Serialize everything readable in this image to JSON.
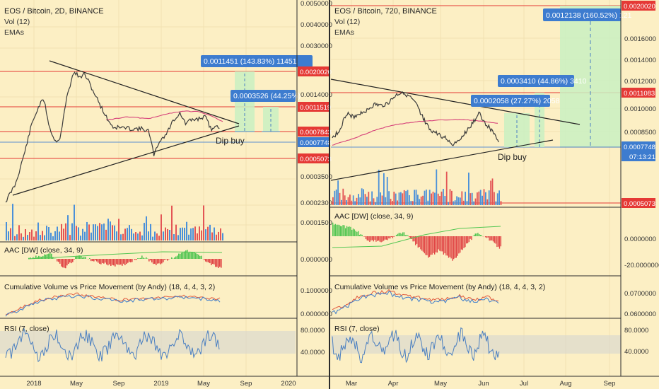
{
  "colors": {
    "background": "#fcefc4",
    "grid": "#f2e2b2",
    "price_line": "#3c3c3c",
    "hline_red": "#e53935",
    "hline_blue": "#5b8fd1",
    "ema": "#d6417a",
    "vol_up": "#4a90d9",
    "vol_down": "#e35555",
    "aac_up": "#52c652",
    "aac_down": "#e14545",
    "cvpm_red": "#e05a3e",
    "cvpm_blue": "#3d7dcb",
    "rsi": "#4a7fc1",
    "rsi_band": "#d6d6d0",
    "label_blue": "#3d7ccf",
    "target_green": "#c9f0c2",
    "separator": "#2b2b2b"
  },
  "left": {
    "title": "EOS / Bitcoin, 2D, BINANCE",
    "sub1": "Vol (12)",
    "sub2": "EMAs",
    "price_labels": {
      "top_partial": "0.0050000",
      "p1": "0.0040000",
      "p2": "0.0030000",
      "p3": "0.0020020",
      "p4": "0.0014000",
      "p5": "0.0011519",
      "p6": "0.0007843",
      "p7": "0.0007748",
      "p8": "0.0005073",
      "p9": "0.0003500",
      "p10": "0.0002300",
      "p11": "0.0001500"
    },
    "box_big": "0.0011451 (143.83%) 11451",
    "box_small": "0.0003526 (44.25%)",
    "dip_text": "Dip buy",
    "aac_title": "AAC [DW] (close, 34, 9)",
    "aac_label": "0.0000000",
    "cvpm_title": "Cumulative Volume vs Price Movement (by Andy) (18, 4, 4, 3, 2)",
    "cvpm_l1": "0.1000000",
    "cvpm_l2": "0.0000000",
    "rsi_title": "RSI (7, close)",
    "rsi_l1": "80.0000",
    "rsi_l2": "40.0000",
    "x_labels": [
      "2018",
      "May",
      "Sep",
      "2019",
      "May",
      "Sep",
      "2020"
    ]
  },
  "right": {
    "title": "EOS / Bitcoin, 720, BINANCE",
    "sub1": "Vol (12)",
    "sub2": "EMAs",
    "price_labels": {
      "top": "0.0020020",
      "p1": "0.0016000",
      "p2": "0.0014000",
      "p3": "0.0012000",
      "p4": "0.0011083",
      "p5": "0.0010000",
      "p6": "0.0008500",
      "p7": "0.0007748",
      "timer": "07:13:21",
      "p8": "0.0005073"
    },
    "box_top": "0.0012138 (160.52%) 121",
    "box_mid": "0.0003410 (44.86%) 3410",
    "box_low": "0.0002058 (27.27%) 2058",
    "dip_text": "Dip buy",
    "aac_title": "AAC [DW] (close, 34, 9)",
    "aac_l1": "0.0000000",
    "aac_l2": "-20.0000000",
    "cvpm_title": "Cumulative Volume vs Price Movement (by Andy) (18, 4, 4, 3, 2)",
    "cvpm_l1": "0.0700000",
    "cvpm_l2": "0.0600000",
    "rsi_title": "RSI (7, close)",
    "rsi_l1": "80.0000",
    "rsi_l2": "40.0000",
    "x_labels": [
      "Mar",
      "Apr",
      "May",
      "Jun",
      "Jul",
      "Aug",
      "Sep"
    ]
  }
}
